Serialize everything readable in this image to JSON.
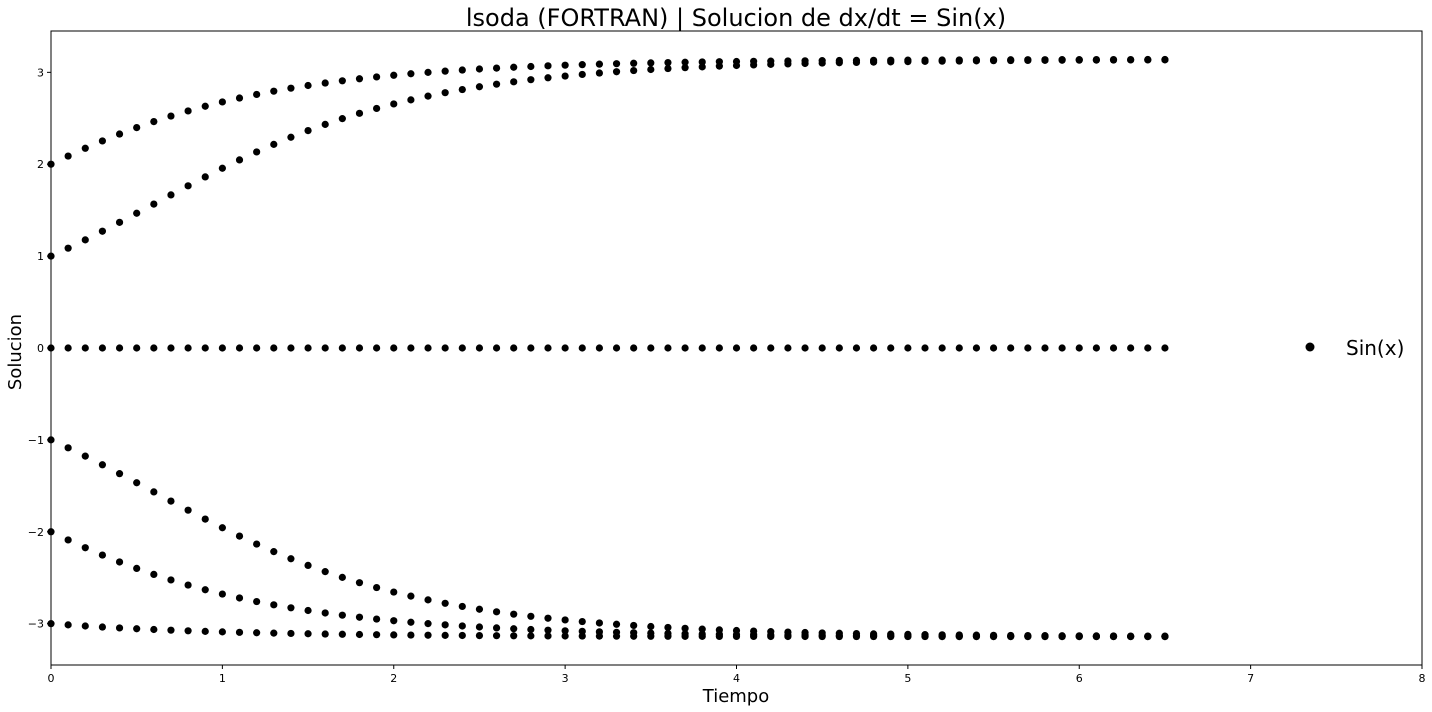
{
  "chart_data": {
    "type": "scatter",
    "title": "lsoda (FORTRAN) | Solucion de dx/dt = Sin(x)",
    "xlabel": "Tiempo",
    "ylabel": "Solucion",
    "xlim": [
      0,
      8
    ],
    "ylim": [
      -3.45,
      3.45
    ],
    "xticks": [
      0,
      1,
      2,
      3,
      4,
      5,
      6,
      7,
      8
    ],
    "yticks": [
      -3,
      -2,
      -1,
      0,
      1,
      2,
      3
    ],
    "ytick_labels": [
      "−3",
      "−2",
      "−1",
      "0",
      "1",
      "2",
      "3"
    ],
    "grid": false,
    "legend_position": "right",
    "marker_color": "#000000",
    "series": [
      {
        "name": "Sin(x)",
        "t_start": 0,
        "t_end": 6.5,
        "t_step": 0.1,
        "initial_values": [
          -3,
          -2,
          -1,
          0,
          1,
          2
        ]
      }
    ]
  }
}
